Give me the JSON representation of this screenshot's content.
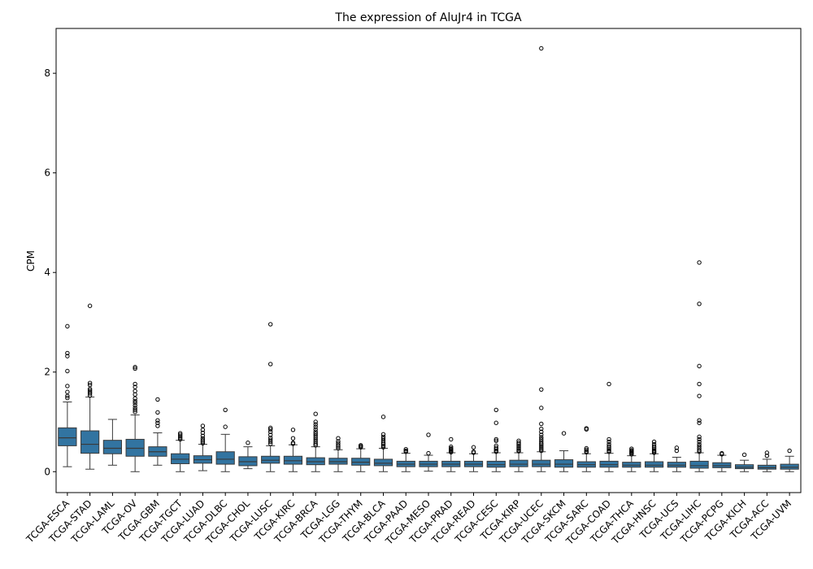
{
  "chart_data": {
    "type": "box",
    "title": "The expression of AluJr4 in TCGA",
    "xlabel": "",
    "ylabel": "CPM",
    "ylim": [
      -0.42,
      8.9
    ],
    "yticks": [
      0,
      2,
      4,
      6,
      8
    ],
    "grid": false,
    "legend": "none",
    "box_color": "#3274a1",
    "edge_color": "#3a3a3a",
    "categories": [
      "TCGA-ESCA",
      "TCGA-STAD",
      "TCGA-LAML",
      "TCGA-OV",
      "TCGA-GBM",
      "TCGA-TGCT",
      "TCGA-LUAD",
      "TCGA-DLBC",
      "TCGA-CHOL",
      "TCGA-LUSC",
      "TCGA-KIRC",
      "TCGA-BRCA",
      "TCGA-LGG",
      "TCGA-THYM",
      "TCGA-BLCA",
      "TCGA-PAAD",
      "TCGA-MESO",
      "TCGA-PRAD",
      "TCGA-READ",
      "TCGA-CESC",
      "TCGA-KIRP",
      "TCGA-UCEC",
      "TCGA-SKCM",
      "TCGA-SARC",
      "TCGA-COAD",
      "TCGA-THCA",
      "TCGA-HNSC",
      "TCGA-UCS",
      "TCGA-LIHC",
      "TCGA-PCPG",
      "TCGA-KICH",
      "TCGA-ACC",
      "TCGA-UVM"
    ],
    "boxes": [
      {
        "whislo": 0.1,
        "q1": 0.52,
        "med": 0.68,
        "q3": 0.88,
        "whishi": 1.4,
        "fliers": [
          2.92,
          2.38,
          2.32,
          2.02,
          1.72,
          1.6,
          1.52,
          1.48
        ]
      },
      {
        "whislo": 0.05,
        "q1": 0.37,
        "med": 0.55,
        "q3": 0.82,
        "whishi": 1.5,
        "fliers": [
          3.33,
          1.78,
          1.74,
          1.66,
          1.63,
          1.6,
          1.57,
          1.53
        ]
      },
      {
        "whislo": 0.13,
        "q1": 0.36,
        "med": 0.47,
        "q3": 0.63,
        "whishi": 1.05,
        "fliers": []
      },
      {
        "whislo": 0.0,
        "q1": 0.31,
        "med": 0.47,
        "q3": 0.65,
        "whishi": 1.14,
        "fliers": [
          2.1,
          2.07,
          1.76,
          1.7,
          1.62,
          1.55,
          1.47,
          1.42,
          1.38,
          1.33,
          1.28,
          1.24,
          1.2
        ]
      },
      {
        "whislo": 0.13,
        "q1": 0.31,
        "med": 0.4,
        "q3": 0.5,
        "whishi": 0.78,
        "fliers": [
          1.45,
          1.19,
          1.03,
          0.98,
          0.92
        ]
      },
      {
        "whislo": 0.0,
        "q1": 0.16,
        "med": 0.25,
        "q3": 0.36,
        "whishi": 0.63,
        "fliers": [
          0.77,
          0.74,
          0.71,
          0.68,
          0.65
        ]
      },
      {
        "whislo": 0.02,
        "q1": 0.17,
        "med": 0.24,
        "q3": 0.32,
        "whishi": 0.55,
        "fliers": [
          0.92,
          0.84,
          0.78,
          0.72,
          0.67,
          0.63,
          0.6,
          0.57
        ]
      },
      {
        "whislo": 0.0,
        "q1": 0.15,
        "med": 0.25,
        "q3": 0.4,
        "whishi": 0.75,
        "fliers": [
          1.24,
          0.9
        ]
      },
      {
        "whislo": 0.06,
        "q1": 0.12,
        "med": 0.2,
        "q3": 0.3,
        "whishi": 0.5,
        "fliers": [
          0.58
        ]
      },
      {
        "whislo": 0.0,
        "q1": 0.17,
        "med": 0.23,
        "q3": 0.31,
        "whishi": 0.52,
        "fliers": [
          2.96,
          2.16,
          0.88,
          0.85,
          0.8,
          0.74,
          0.68,
          0.64,
          0.6,
          0.56
        ]
      },
      {
        "whislo": 0.0,
        "q1": 0.15,
        "med": 0.22,
        "q3": 0.31,
        "whishi": 0.54,
        "fliers": [
          0.84,
          0.67,
          0.58,
          0.56
        ]
      },
      {
        "whislo": 0.0,
        "q1": 0.14,
        "med": 0.2,
        "q3": 0.28,
        "whishi": 0.5,
        "fliers": [
          1.16,
          1.0,
          0.95,
          0.9,
          0.85,
          0.8,
          0.76,
          0.72,
          0.68,
          0.64,
          0.6,
          0.56,
          0.53
        ]
      },
      {
        "whislo": 0.0,
        "q1": 0.15,
        "med": 0.2,
        "q3": 0.27,
        "whishi": 0.44,
        "fliers": [
          0.67,
          0.61,
          0.57,
          0.53,
          0.5,
          0.47
        ]
      },
      {
        "whislo": 0.0,
        "q1": 0.13,
        "med": 0.19,
        "q3": 0.27,
        "whishi": 0.46,
        "fliers": [
          0.53,
          0.51,
          0.49
        ]
      },
      {
        "whislo": 0.0,
        "q1": 0.12,
        "med": 0.17,
        "q3": 0.25,
        "whishi": 0.47,
        "fliers": [
          1.1,
          0.75,
          0.7,
          0.66,
          0.62,
          0.58,
          0.55,
          0.52,
          0.49
        ]
      },
      {
        "whislo": 0.0,
        "q1": 0.1,
        "med": 0.15,
        "q3": 0.21,
        "whishi": 0.37,
        "fliers": [
          0.45,
          0.42,
          0.4
        ]
      },
      {
        "whislo": 0.01,
        "q1": 0.1,
        "med": 0.15,
        "q3": 0.21,
        "whishi": 0.33,
        "fliers": [
          0.74,
          0.37
        ]
      },
      {
        "whislo": 0.0,
        "q1": 0.1,
        "med": 0.15,
        "q3": 0.21,
        "whishi": 0.38,
        "fliers": [
          0.65,
          0.5,
          0.47,
          0.45,
          0.43,
          0.41,
          0.39
        ]
      },
      {
        "whislo": 0.0,
        "q1": 0.1,
        "med": 0.15,
        "q3": 0.21,
        "whishi": 0.36,
        "fliers": [
          0.49,
          0.4,
          0.38
        ]
      },
      {
        "whislo": 0.0,
        "q1": 0.09,
        "med": 0.14,
        "q3": 0.21,
        "whishi": 0.38,
        "fliers": [
          1.24,
          0.98,
          0.65,
          0.62,
          0.52,
          0.48,
          0.45,
          0.42,
          0.4
        ]
      },
      {
        "whislo": 0.0,
        "q1": 0.1,
        "med": 0.15,
        "q3": 0.23,
        "whishi": 0.38,
        "fliers": [
          0.62,
          0.58,
          0.55,
          0.52,
          0.49,
          0.46,
          0.43,
          0.41
        ]
      },
      {
        "whislo": 0.0,
        "q1": 0.1,
        "med": 0.15,
        "q3": 0.23,
        "whishi": 0.4,
        "fliers": [
          8.5,
          1.65,
          1.28,
          0.96,
          0.86,
          0.8,
          0.74,
          0.69,
          0.65,
          0.61,
          0.57,
          0.54,
          0.51,
          0.48,
          0.45,
          0.42
        ]
      },
      {
        "whislo": 0.0,
        "q1": 0.09,
        "med": 0.15,
        "q3": 0.24,
        "whishi": 0.42,
        "fliers": [
          0.77
        ]
      },
      {
        "whislo": 0.0,
        "q1": 0.09,
        "med": 0.14,
        "q3": 0.2,
        "whishi": 0.36,
        "fliers": [
          0.87,
          0.85,
          0.47,
          0.44,
          0.41,
          0.39
        ]
      },
      {
        "whislo": 0.0,
        "q1": 0.09,
        "med": 0.14,
        "q3": 0.21,
        "whishi": 0.37,
        "fliers": [
          1.76,
          0.65,
          0.6,
          0.55,
          0.51,
          0.48,
          0.45,
          0.42,
          0.4
        ]
      },
      {
        "whislo": 0.0,
        "q1": 0.09,
        "med": 0.13,
        "q3": 0.19,
        "whishi": 0.32,
        "fliers": [
          0.46,
          0.43,
          0.41,
          0.39,
          0.37,
          0.35
        ]
      },
      {
        "whislo": 0.0,
        "q1": 0.09,
        "med": 0.13,
        "q3": 0.2,
        "whishi": 0.36,
        "fliers": [
          0.6,
          0.55,
          0.51,
          0.48,
          0.45,
          0.42,
          0.4,
          0.38
        ]
      },
      {
        "whislo": 0.0,
        "q1": 0.09,
        "med": 0.13,
        "q3": 0.19,
        "whishi": 0.29,
        "fliers": [
          0.48,
          0.42
        ]
      },
      {
        "whislo": 0.0,
        "q1": 0.07,
        "med": 0.12,
        "q3": 0.21,
        "whishi": 0.38,
        "fliers": [
          4.2,
          3.37,
          2.12,
          1.76,
          1.52,
          1.03,
          0.98,
          0.7,
          0.65,
          0.6,
          0.55,
          0.51,
          0.47,
          0.43,
          0.4
        ]
      },
      {
        "whislo": 0.0,
        "q1": 0.08,
        "med": 0.12,
        "q3": 0.18,
        "whishi": 0.33,
        "fliers": [
          0.37,
          0.35
        ]
      },
      {
        "whislo": 0.0,
        "q1": 0.06,
        "med": 0.09,
        "q3": 0.14,
        "whishi": 0.23,
        "fliers": [
          0.34
        ]
      },
      {
        "whislo": 0.0,
        "q1": 0.05,
        "med": 0.08,
        "q3": 0.13,
        "whishi": 0.25,
        "fliers": [
          0.38,
          0.32
        ]
      },
      {
        "whislo": 0.0,
        "q1": 0.05,
        "med": 0.09,
        "q3": 0.15,
        "whishi": 0.31,
        "fliers": [
          0.42
        ]
      }
    ]
  }
}
